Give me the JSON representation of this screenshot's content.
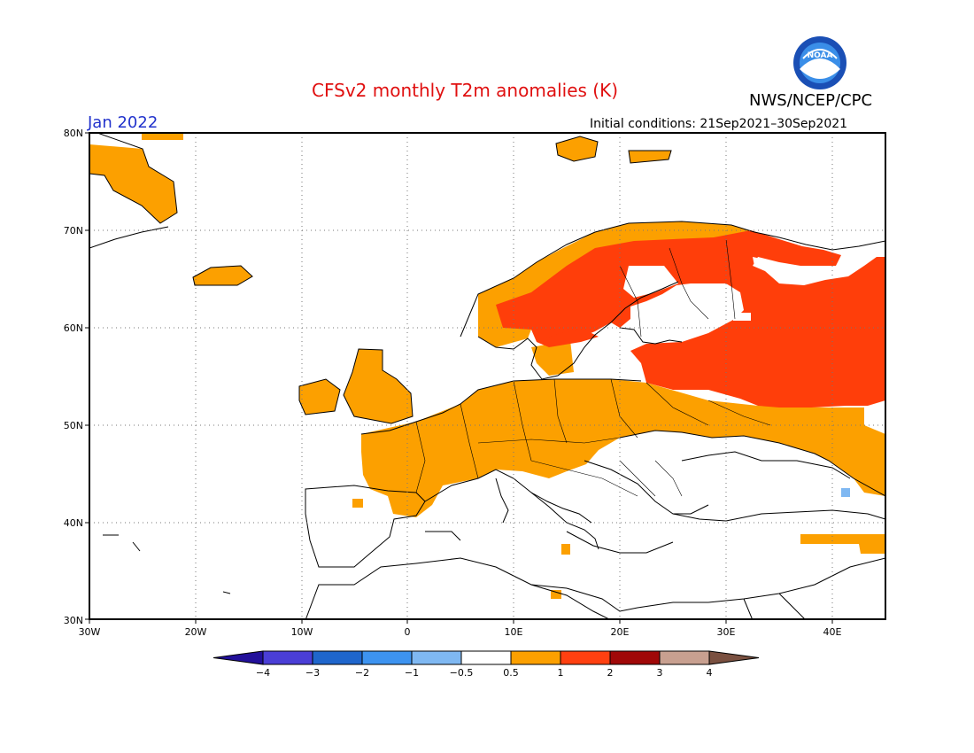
{
  "title": "CFSv2 monthly T2m anomalies (K)",
  "agency": "NWS/NCEP/CPC",
  "logo_text": "NOAA",
  "valid_month": "Jan 2022",
  "initial_conditions": "Initial conditions: 21Sep2021–30Sep2021",
  "lat_ticks": [
    "30N",
    "40N",
    "50N",
    "60N",
    "70N",
    "80N"
  ],
  "lon_ticks": [
    "30W",
    "20W",
    "10W",
    "0",
    "10E",
    "20E",
    "30E",
    "40E"
  ],
  "colorbar": {
    "labels": [
      "−4",
      "−3",
      "−2",
      "−1",
      "−0.5",
      "0.5",
      "1",
      "2",
      "3",
      "4"
    ],
    "colors": [
      "#22109a",
      "#4a3ed6",
      "#1f66cc",
      "#3d93f0",
      "#7fb8f2",
      "#ffffff",
      "#fca000",
      "#ff4010",
      "#a00808",
      "#c8a090",
      "#7a5040"
    ]
  },
  "colors": {
    "anomaly_0_5_1": "#fca000",
    "anomaly_1_2": "#ff3e0a",
    "anomaly_neg": "#7fb8f2"
  }
}
